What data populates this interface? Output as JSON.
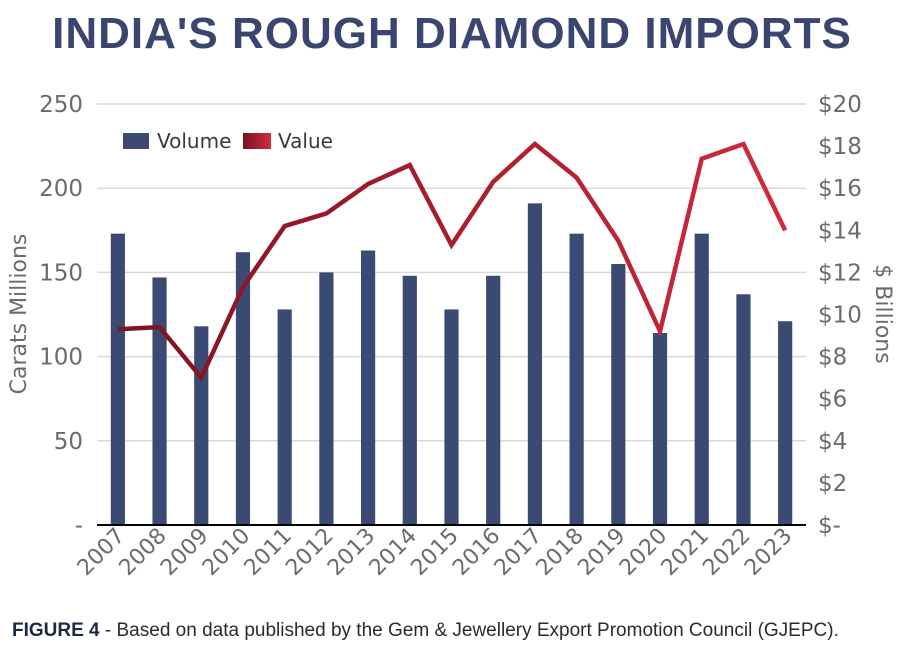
{
  "figure": {
    "caption_label": "FIGURE 4",
    "caption_text": " - Based on data published by the Gem & Jewellery Export Promotion Council (GJEPC)."
  },
  "colors": {
    "title": "#3a4670",
    "bars": "#3b4a73",
    "line_start": "#7a1220",
    "line_end": "#d42a3e",
    "gridline": "#d9d9d9",
    "axis": "#000000",
    "ticks": "#6b6b6b"
  },
  "chart_data": {
    "type": "bar+line",
    "title": "INDIA'S ROUGH DIAMOND IMPORTS",
    "categories": [
      "2007",
      "2008",
      "2009",
      "2010",
      "2011",
      "2012",
      "2013",
      "2014",
      "2015",
      "2016",
      "2017",
      "2018",
      "2019",
      "2020",
      "2021",
      "2022",
      "2023"
    ],
    "series": [
      {
        "name": "Volume",
        "type": "bar",
        "axis": "left",
        "values": [
          173,
          147,
          118,
          162,
          128,
          150,
          163,
          148,
          128,
          148,
          191,
          173,
          155,
          114,
          173,
          137,
          121
        ]
      },
      {
        "name": "Value",
        "type": "line",
        "axis": "right",
        "values": [
          9.3,
          9.4,
          7.0,
          11.3,
          14.2,
          14.8,
          16.2,
          17.1,
          13.3,
          16.3,
          18.1,
          16.5,
          13.5,
          9.2,
          17.4,
          18.1,
          14.0
        ]
      }
    ],
    "ylabel_left": "Carats Millions",
    "ylabel_right": "$ Billions",
    "ylim_left": [
      0,
      250
    ],
    "ylim_right": [
      0,
      20
    ],
    "yticks_left": [
      "-",
      "50",
      "100",
      "150",
      "200",
      "250"
    ],
    "yticks_right": [
      "$-",
      "$2",
      "$4",
      "$6",
      "$8",
      "$10",
      "$12",
      "$14",
      "$16",
      "$18",
      "$20"
    ],
    "legend": [
      {
        "label": "Volume"
      },
      {
        "label": "Value"
      }
    ],
    "legend_position": "top-left",
    "grid": true
  }
}
